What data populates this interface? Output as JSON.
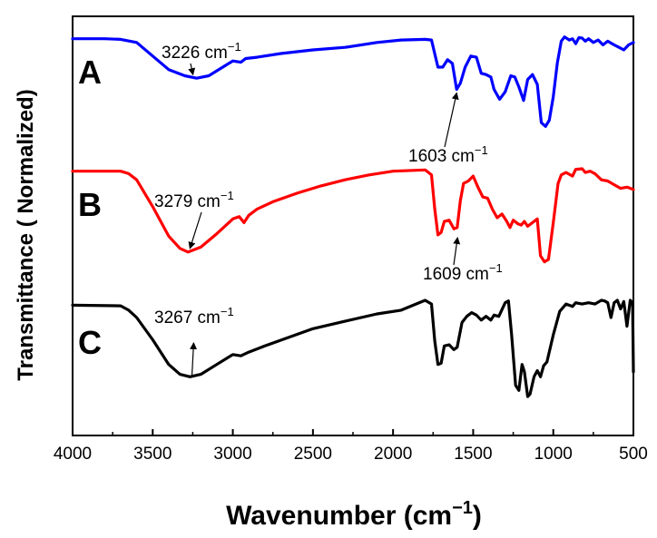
{
  "chart_data": {
    "type": "line",
    "xlabel": "Wavenumber (cm",
    "xlabel_sup": "−1",
    "xlabel_close": ")",
    "ylabel": "Transmittance ( Normalized)",
    "xlim": [
      4000,
      500
    ],
    "x_ticks": [
      "4000",
      "3500",
      "3000",
      "2500",
      "2000",
      "1500",
      "1000",
      "500"
    ],
    "series": [
      {
        "name": "A",
        "color": "#0000ff",
        "points": [
          [
            4000,
            0.02
          ],
          [
            3800,
            0.02
          ],
          [
            3700,
            0.025
          ],
          [
            3600,
            0.05
          ],
          [
            3500,
            0.16
          ],
          [
            3400,
            0.27
          ],
          [
            3300,
            0.32
          ],
          [
            3226,
            0.34
          ],
          [
            3150,
            0.32
          ],
          [
            3050,
            0.24
          ],
          [
            3000,
            0.2
          ],
          [
            2950,
            0.21
          ],
          [
            2920,
            0.18
          ],
          [
            2850,
            0.17
          ],
          [
            2700,
            0.14
          ],
          [
            2500,
            0.11
          ],
          [
            2300,
            0.09
          ],
          [
            2100,
            0.05
          ],
          [
            1950,
            0.03
          ],
          [
            1800,
            0.025
          ],
          [
            1760,
            0.03
          ],
          [
            1720,
            0.25
          ],
          [
            1690,
            0.25
          ],
          [
            1660,
            0.19
          ],
          [
            1630,
            0.22
          ],
          [
            1603,
            0.43
          ],
          [
            1580,
            0.38
          ],
          [
            1550,
            0.25
          ],
          [
            1515,
            0.16
          ],
          [
            1480,
            0.17
          ],
          [
            1450,
            0.3
          ],
          [
            1420,
            0.31
          ],
          [
            1390,
            0.33
          ],
          [
            1370,
            0.43
          ],
          [
            1335,
            0.51
          ],
          [
            1300,
            0.45
          ],
          [
            1265,
            0.32
          ],
          [
            1240,
            0.33
          ],
          [
            1215,
            0.41
          ],
          [
            1185,
            0.52
          ],
          [
            1160,
            0.35
          ],
          [
            1130,
            0.31
          ],
          [
            1100,
            0.39
          ],
          [
            1075,
            0.7
          ],
          [
            1048,
            0.73
          ],
          [
            1025,
            0.68
          ],
          [
            1000,
            0.49
          ],
          [
            975,
            0.22
          ],
          [
            950,
            0.04
          ],
          [
            930,
            0.005
          ],
          [
            900,
            0.03
          ],
          [
            880,
            0.02
          ],
          [
            860,
            0.06
          ],
          [
            840,
            0.01
          ],
          [
            820,
            0.015
          ],
          [
            800,
            0.04
          ],
          [
            780,
            0.02
          ],
          [
            750,
            0.05
          ],
          [
            720,
            0.03
          ],
          [
            690,
            0.07
          ],
          [
            660,
            0.04
          ],
          [
            620,
            0.07
          ],
          [
            590,
            0.09
          ],
          [
            560,
            0.11
          ],
          [
            530,
            0.07
          ],
          [
            500,
            0.05
          ]
        ]
      },
      {
        "name": "B",
        "color": "#ff0000",
        "points": [
          [
            4000,
            0.02
          ],
          [
            3700,
            0.02
          ],
          [
            3650,
            0.04
          ],
          [
            3600,
            0.09
          ],
          [
            3500,
            0.31
          ],
          [
            3400,
            0.55
          ],
          [
            3330,
            0.65
          ],
          [
            3279,
            0.68
          ],
          [
            3200,
            0.64
          ],
          [
            3100,
            0.53
          ],
          [
            3000,
            0.41
          ],
          [
            2960,
            0.39
          ],
          [
            2930,
            0.44
          ],
          [
            2900,
            0.38
          ],
          [
            2850,
            0.33
          ],
          [
            2750,
            0.27
          ],
          [
            2600,
            0.2
          ],
          [
            2450,
            0.14
          ],
          [
            2300,
            0.09
          ],
          [
            2150,
            0.05
          ],
          [
            2000,
            0.02
          ],
          [
            1800,
            0.01
          ],
          [
            1760,
            0.05
          ],
          [
            1740,
            0.33
          ],
          [
            1720,
            0.54
          ],
          [
            1700,
            0.52
          ],
          [
            1680,
            0.43
          ],
          [
            1650,
            0.42
          ],
          [
            1620,
            0.49
          ],
          [
            1600,
            0.48
          ],
          [
            1580,
            0.26
          ],
          [
            1560,
            0.12
          ],
          [
            1530,
            0.1
          ],
          [
            1500,
            0.06
          ],
          [
            1470,
            0.15
          ],
          [
            1440,
            0.23
          ],
          [
            1410,
            0.24
          ],
          [
            1380,
            0.33
          ],
          [
            1350,
            0.4
          ],
          [
            1320,
            0.37
          ],
          [
            1290,
            0.43
          ],
          [
            1270,
            0.48
          ],
          [
            1250,
            0.42
          ],
          [
            1220,
            0.45
          ],
          [
            1200,
            0.46
          ],
          [
            1180,
            0.43
          ],
          [
            1160,
            0.47
          ],
          [
            1130,
            0.44
          ],
          [
            1100,
            0.41
          ],
          [
            1080,
            0.71
          ],
          [
            1055,
            0.76
          ],
          [
            1030,
            0.74
          ],
          [
            1000,
            0.44
          ],
          [
            970,
            0.12
          ],
          [
            950,
            0.05
          ],
          [
            920,
            0.03
          ],
          [
            880,
            0.06
          ],
          [
            860,
            0.005
          ],
          [
            820,
            0.0
          ],
          [
            800,
            0.03
          ],
          [
            770,
            0.02
          ],
          [
            740,
            0.04
          ],
          [
            700,
            0.09
          ],
          [
            660,
            0.1
          ],
          [
            620,
            0.13
          ],
          [
            580,
            0.16
          ],
          [
            540,
            0.15
          ],
          [
            500,
            0.17
          ]
        ]
      },
      {
        "name": "C",
        "color": "#000000",
        "points": [
          [
            4000,
            0.04
          ],
          [
            3700,
            0.045
          ],
          [
            3650,
            0.08
          ],
          [
            3600,
            0.14
          ],
          [
            3500,
            0.32
          ],
          [
            3400,
            0.52
          ],
          [
            3330,
            0.6
          ],
          [
            3267,
            0.62
          ],
          [
            3200,
            0.6
          ],
          [
            3100,
            0.52
          ],
          [
            3000,
            0.44
          ],
          [
            2950,
            0.45
          ],
          [
            2900,
            0.42
          ],
          [
            2800,
            0.37
          ],
          [
            2650,
            0.3
          ],
          [
            2500,
            0.23
          ],
          [
            2300,
            0.17
          ],
          [
            2100,
            0.11
          ],
          [
            1950,
            0.08
          ],
          [
            1800,
            0.0
          ],
          [
            1760,
            0.03
          ],
          [
            1740,
            0.33
          ],
          [
            1720,
            0.52
          ],
          [
            1700,
            0.51
          ],
          [
            1680,
            0.37
          ],
          [
            1650,
            0.36
          ],
          [
            1620,
            0.4
          ],
          [
            1600,
            0.38
          ],
          [
            1570,
            0.18
          ],
          [
            1540,
            0.13
          ],
          [
            1510,
            0.1
          ],
          [
            1480,
            0.12
          ],
          [
            1450,
            0.16
          ],
          [
            1420,
            0.13
          ],
          [
            1390,
            0.16
          ],
          [
            1370,
            0.12
          ],
          [
            1340,
            0.13
          ],
          [
            1300,
            0.02
          ],
          [
            1280,
            0.005
          ],
          [
            1260,
            0.28
          ],
          [
            1235,
            0.69
          ],
          [
            1215,
            0.73
          ],
          [
            1195,
            0.52
          ],
          [
            1180,
            0.58
          ],
          [
            1160,
            0.78
          ],
          [
            1145,
            0.76
          ],
          [
            1120,
            0.62
          ],
          [
            1100,
            0.57
          ],
          [
            1080,
            0.62
          ],
          [
            1060,
            0.53
          ],
          [
            1040,
            0.5
          ],
          [
            1000,
            0.28
          ],
          [
            960,
            0.09
          ],
          [
            920,
            0.03
          ],
          [
            880,
            0.05
          ],
          [
            860,
            0.02
          ],
          [
            820,
            0.03
          ],
          [
            780,
            0.02
          ],
          [
            740,
            0.03
          ],
          [
            700,
            0.0
          ],
          [
            680,
            0.005
          ],
          [
            660,
            0.02
          ],
          [
            640,
            0.14
          ],
          [
            620,
            0.02
          ],
          [
            600,
            0.0
          ],
          [
            580,
            0.07
          ],
          [
            560,
            0.01
          ],
          [
            540,
            0.21
          ],
          [
            520,
            0.0
          ],
          [
            505,
            0.02
          ],
          [
            500,
            0.58
          ]
        ]
      }
    ],
    "panel_labels": [
      "A",
      "B",
      "C"
    ],
    "annotations": [
      {
        "series": "A",
        "text": "3226 cm",
        "sup": "−1",
        "x": 3226,
        "arrow_to": "peak"
      },
      {
        "series": "A",
        "text": "1603 cm",
        "sup": "−1",
        "x": 1603,
        "arrow_to": "peak"
      },
      {
        "series": "B",
        "text": "3279 cm",
        "sup": "−1",
        "x": 3279,
        "arrow_to": "peak"
      },
      {
        "series": "B",
        "text": "1609 cm",
        "sup": "−1",
        "x": 1609,
        "arrow_to": "peak"
      },
      {
        "series": "C",
        "text": "3267 cm",
        "sup": "−1",
        "x": 3267,
        "arrow_to": "peak"
      }
    ]
  }
}
